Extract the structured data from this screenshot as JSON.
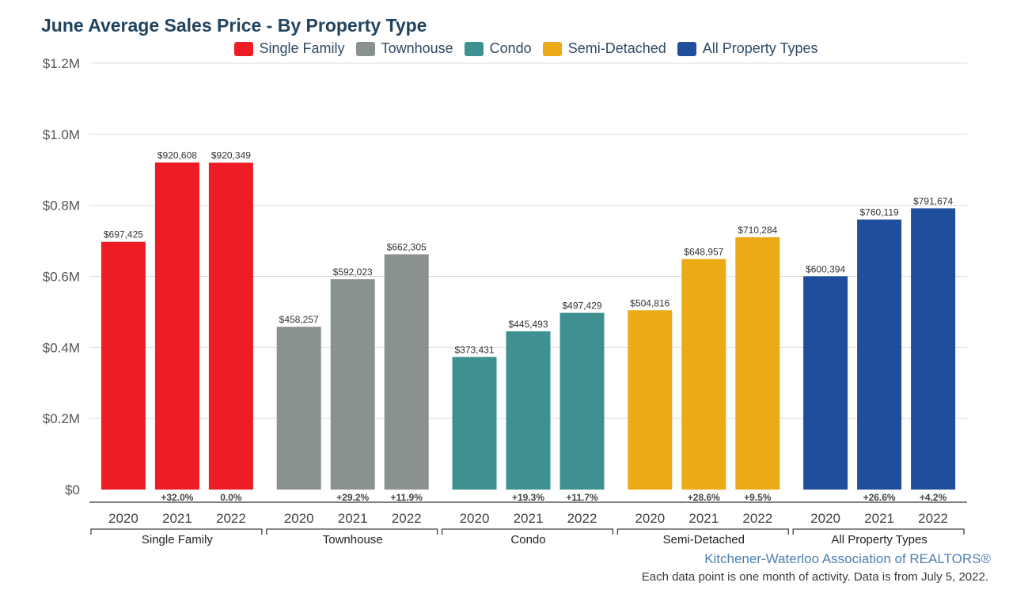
{
  "chart_data": {
    "type": "bar",
    "title": "June Average Sales Price - By Property Type",
    "ylim": [
      0,
      1200000
    ],
    "yticks": [
      {
        "value": 0,
        "label": "$0"
      },
      {
        "value": 200000,
        "label": "$0.2M"
      },
      {
        "value": 400000,
        "label": "$0.4M"
      },
      {
        "value": 600000,
        "label": "$0.6M"
      },
      {
        "value": 800000,
        "label": "$0.8M"
      },
      {
        "value": 1000000,
        "label": "$1.0M"
      },
      {
        "value": 1200000,
        "label": "$1.2M"
      }
    ],
    "grid": true,
    "legend_position": "top-center",
    "years": [
      "2020",
      "2021",
      "2022"
    ],
    "groups": [
      {
        "name": "Single Family",
        "color": "#ee1c25",
        "values": [
          697425,
          920608,
          920349
        ],
        "value_labels": [
          "$697,425",
          "$920,608",
          "$920,349"
        ],
        "changes": [
          "",
          "+32.0%",
          "0.0%"
        ]
      },
      {
        "name": "Townhouse",
        "color": "#8a9290",
        "values": [
          458257,
          592023,
          662305
        ],
        "value_labels": [
          "$458,257",
          "$592,023",
          "$662,305"
        ],
        "changes": [
          "",
          "+29.2%",
          "+11.9%"
        ]
      },
      {
        "name": "Condo",
        "color": "#3f9090",
        "values": [
          373431,
          445493,
          497429
        ],
        "value_labels": [
          "$373,431",
          "$445,493",
          "$497,429"
        ],
        "changes": [
          "",
          "+19.3%",
          "+11.7%"
        ]
      },
      {
        "name": "Semi-Detached",
        "color": "#ecab16",
        "values": [
          504816,
          648957,
          710284
        ],
        "value_labels": [
          "$504,816",
          "$648,957",
          "$710,284"
        ],
        "changes": [
          "",
          "+28.6%",
          "+9.5%"
        ]
      },
      {
        "name": "All Property Types",
        "color": "#1f4e9c",
        "values": [
          600394,
          760119,
          791674
        ],
        "value_labels": [
          "$600,394",
          "$760,119",
          "$791,674"
        ],
        "changes": [
          "",
          "+26.6%",
          "+4.2%"
        ]
      }
    ]
  },
  "footer": {
    "credit": "Kitchener-Waterloo Association of REALTORS®",
    "note": "Each data point is one month of activity. Data is from July 5, 2022."
  }
}
